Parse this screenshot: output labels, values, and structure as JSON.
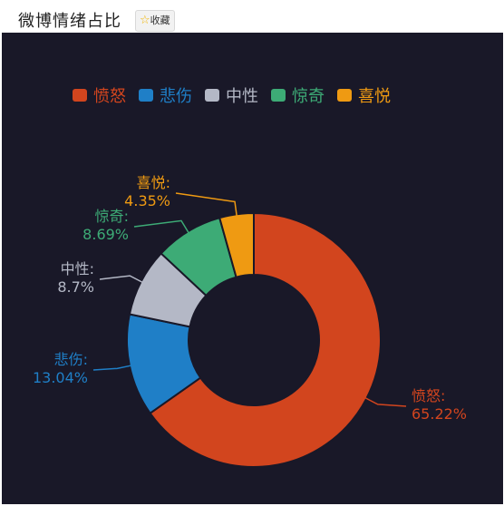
{
  "header": {
    "title": "微博情绪占比",
    "favorite_label": "收藏",
    "favorite_icon": "star-icon"
  },
  "chart_data": {
    "type": "pie",
    "title": "微博情绪占比",
    "donut": true,
    "legend_position": "top",
    "slices": [
      {
        "name": "愤怒",
        "value": 65.22,
        "label": "65.22%",
        "color": "#d2451e"
      },
      {
        "name": "悲伤",
        "value": 13.04,
        "label": "13.04%",
        "color": "#1f7fc7"
      },
      {
        "name": "中性",
        "value": 8.7,
        "label": "8.7%",
        "color": "#b4b8c6"
      },
      {
        "name": "惊奇",
        "value": 8.69,
        "label": "8.69%",
        "color": "#3dab76"
      },
      {
        "name": "喜悦",
        "value": 4.35,
        "label": "4.35%",
        "color": "#ef9a12"
      }
    ]
  }
}
